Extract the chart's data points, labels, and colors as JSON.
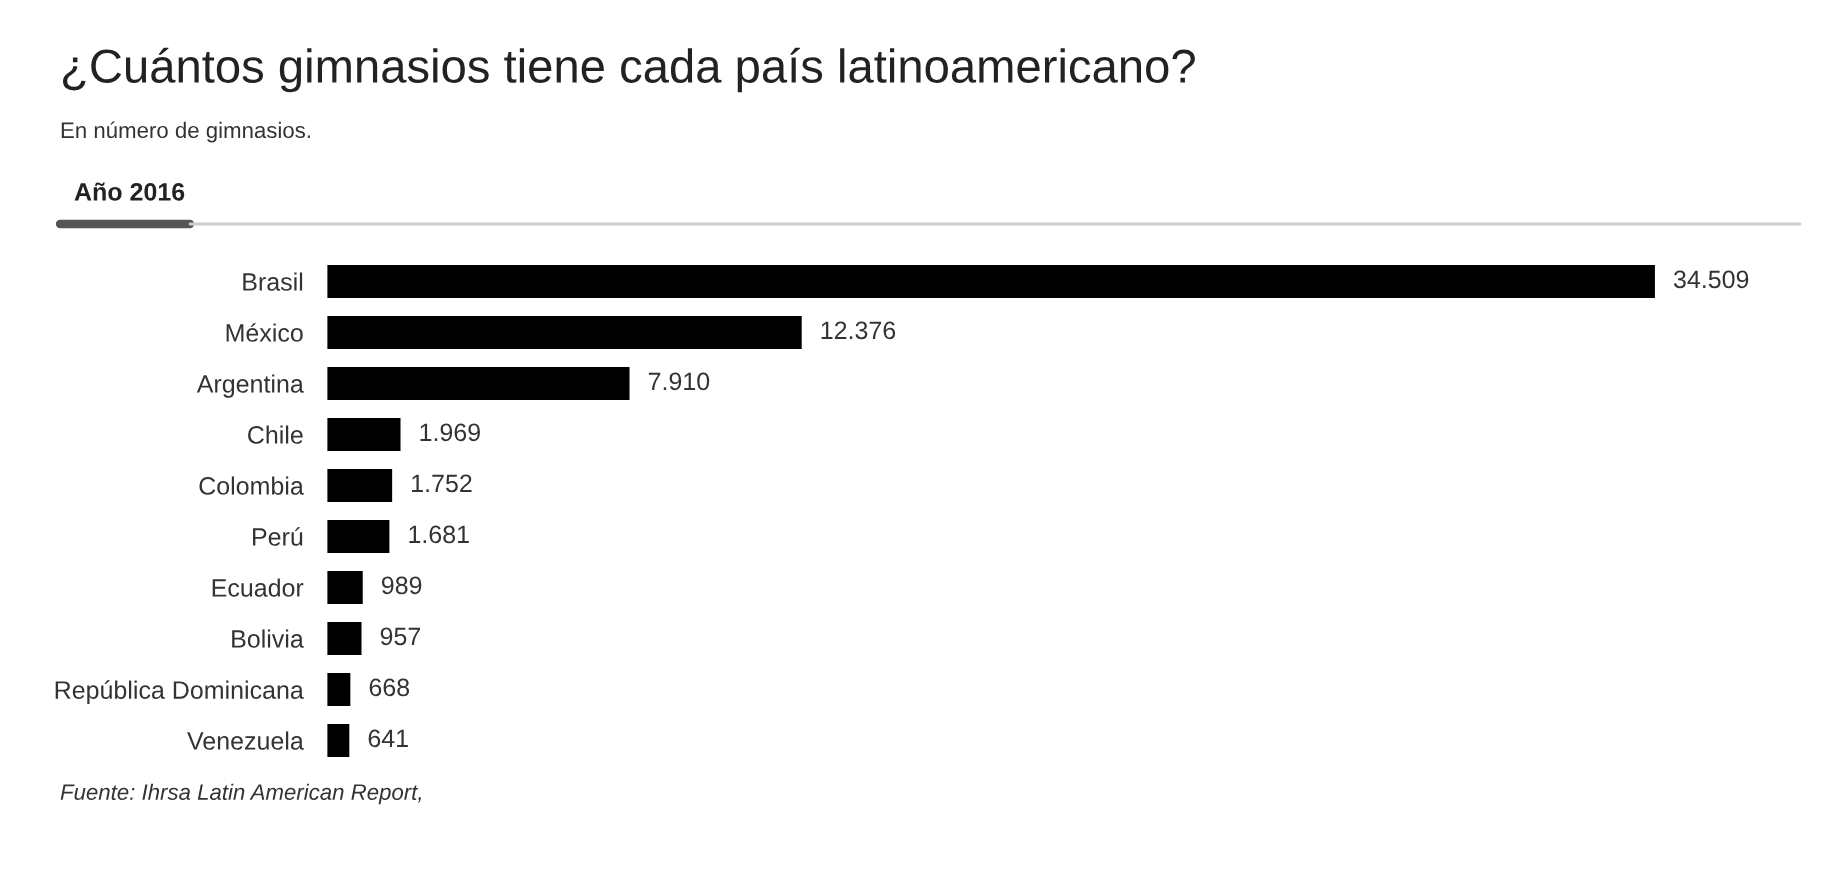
{
  "chart_data": {
    "type": "bar",
    "orientation": "horizontal",
    "title": "¿Cuántos gimnasios tiene cada país latinoamericano?",
    "subtitle": "En número de gimnasios.",
    "annotations": [
      "Año 2016",
      "Fuente: Ihrsa Latin American Report,"
    ],
    "categories": [
      "Brasil",
      "México",
      "Argentina",
      "Chile",
      "Colombia",
      "Perú",
      "Ecuador",
      "Bolivia",
      "República Dominicana",
      "Venezuela"
    ],
    "values": [
      34509,
      12376,
      7910,
      1969,
      1752,
      1681,
      989,
      957,
      668,
      641
    ],
    "value_labels": [
      "34.509",
      "12.376",
      "7.910",
      "1.969",
      "1.752",
      "1.681",
      "989",
      "957",
      "668",
      "641"
    ],
    "color": "#000000",
    "grid": false,
    "legend": false
  }
}
